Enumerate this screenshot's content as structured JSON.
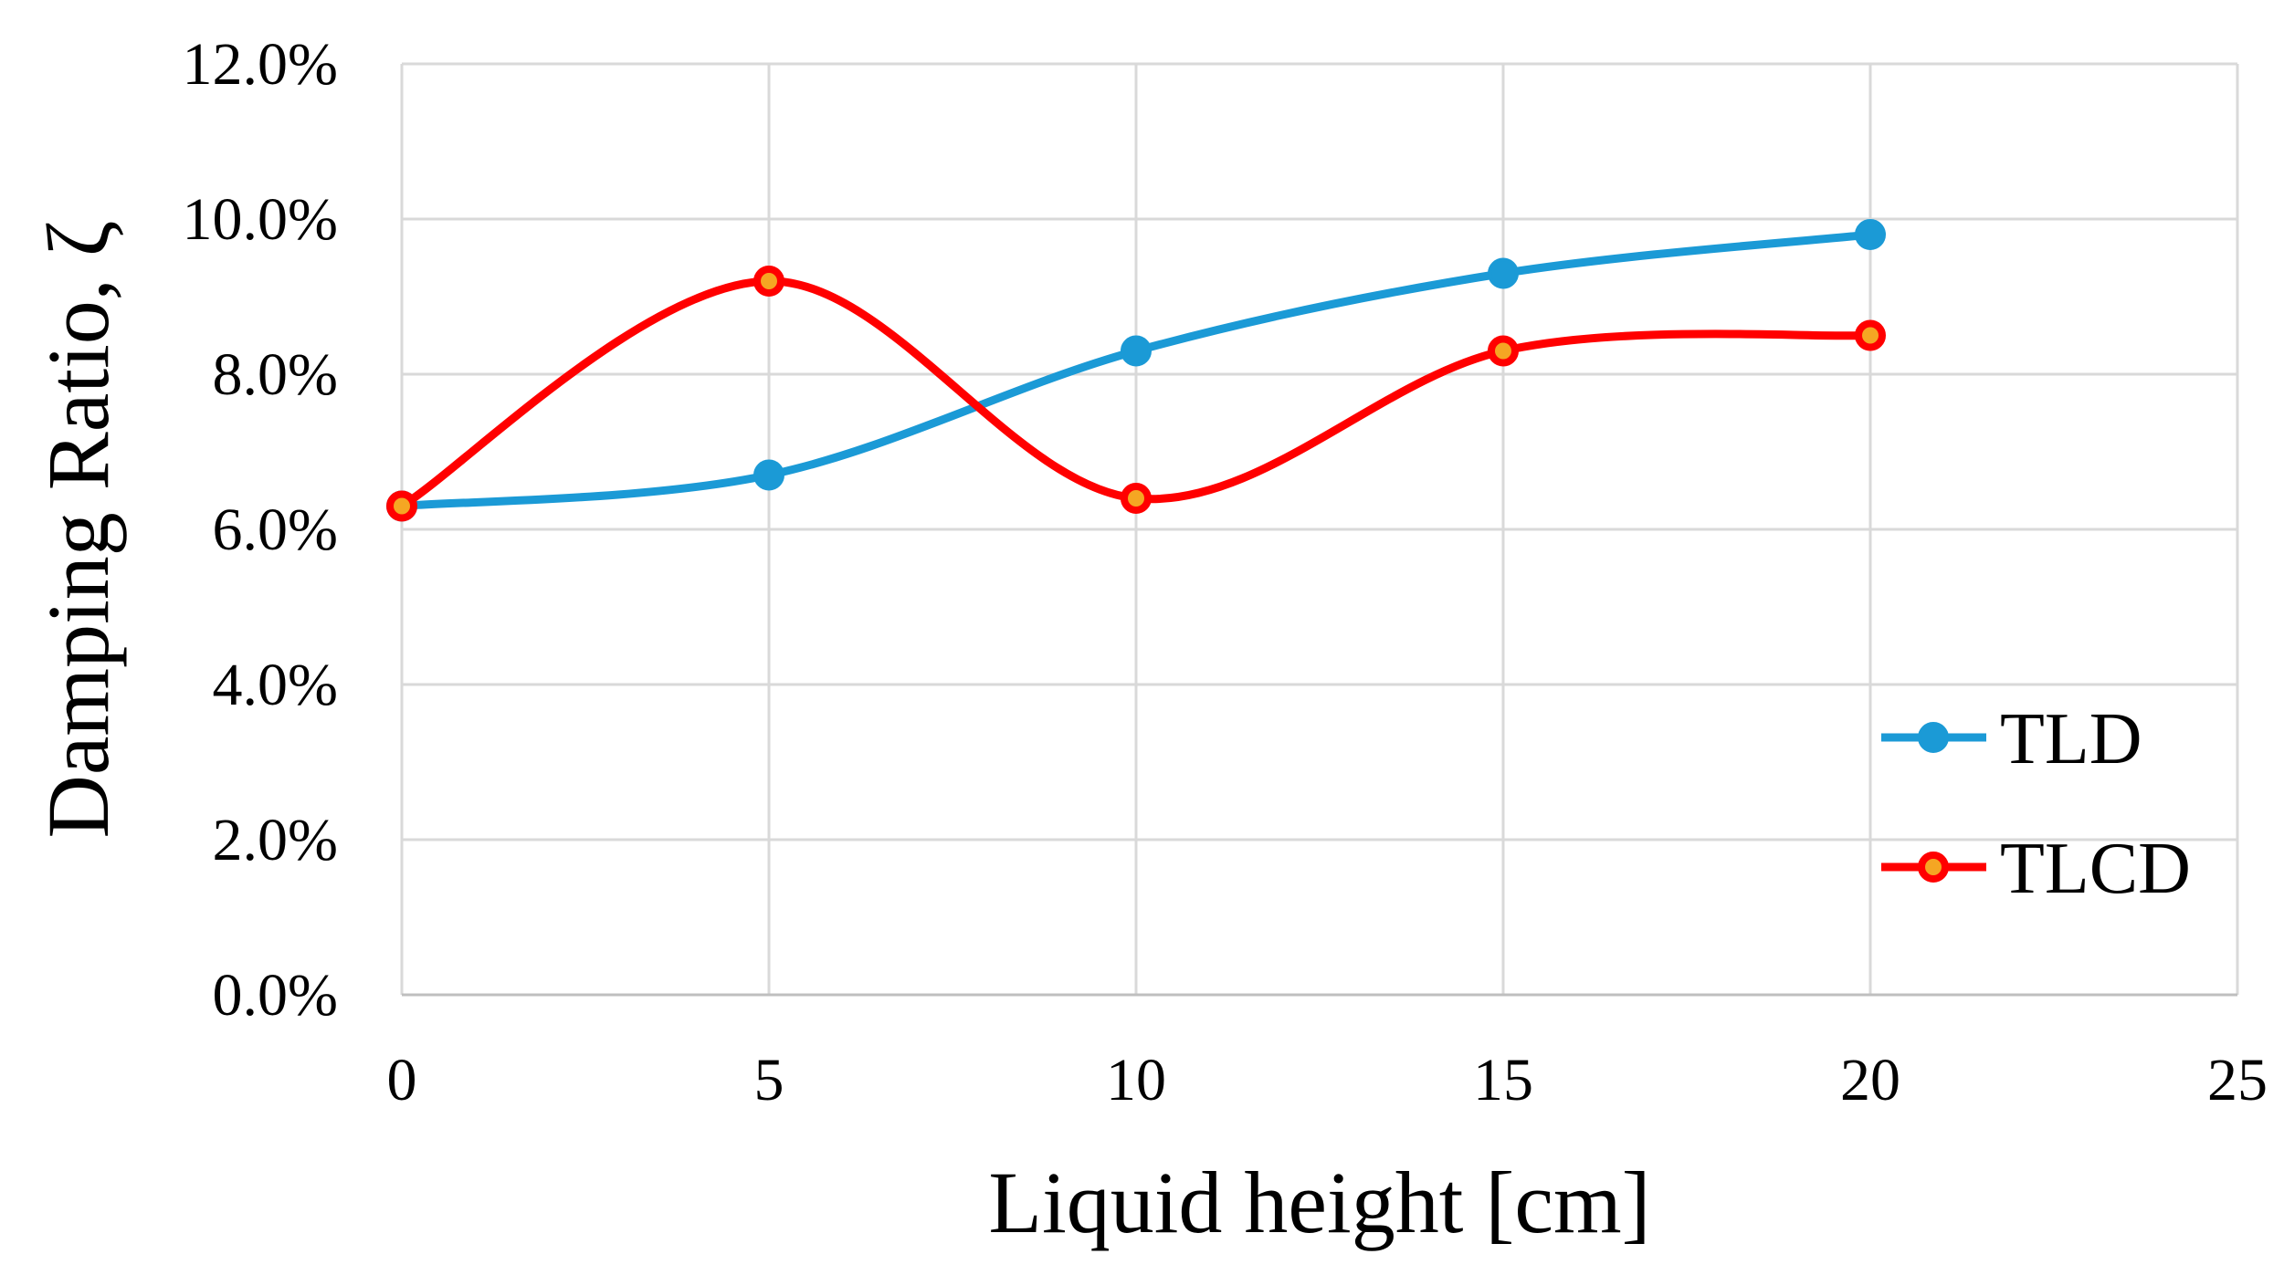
{
  "chart_data": {
    "type": "line",
    "xlabel": "Liquid height [cm]",
    "ylabel": "Damping Ratio, ζ",
    "xlim": [
      0,
      25
    ],
    "ylim": [
      0,
      0.12
    ],
    "x_ticks": [
      0,
      5,
      10,
      15,
      20,
      25
    ],
    "x_tick_labels": [
      "0",
      "5",
      "10",
      "15",
      "20",
      "25"
    ],
    "y_ticks": [
      0,
      0.02,
      0.04,
      0.06,
      0.08,
      0.1,
      0.12
    ],
    "y_tick_labels": [
      "0.0%",
      "2.0%",
      "4.0%",
      "6.0%",
      "8.0%",
      "10.0%",
      "12.0%"
    ],
    "grid": true,
    "legend_position": "right",
    "smoothed": true,
    "series": [
      {
        "name": "TLD",
        "color": "#1b9ad6",
        "marker_fill": "#1b9ad6",
        "x": [
          0,
          5,
          10,
          15,
          20
        ],
        "y": [
          0.063,
          0.067,
          0.083,
          0.093,
          0.098
        ]
      },
      {
        "name": "TLCD",
        "color": "#ff0000",
        "marker_fill": "#f5a623",
        "x": [
          0,
          5,
          10,
          15,
          20
        ],
        "y": [
          0.063,
          0.092,
          0.064,
          0.083,
          0.085
        ]
      }
    ]
  }
}
